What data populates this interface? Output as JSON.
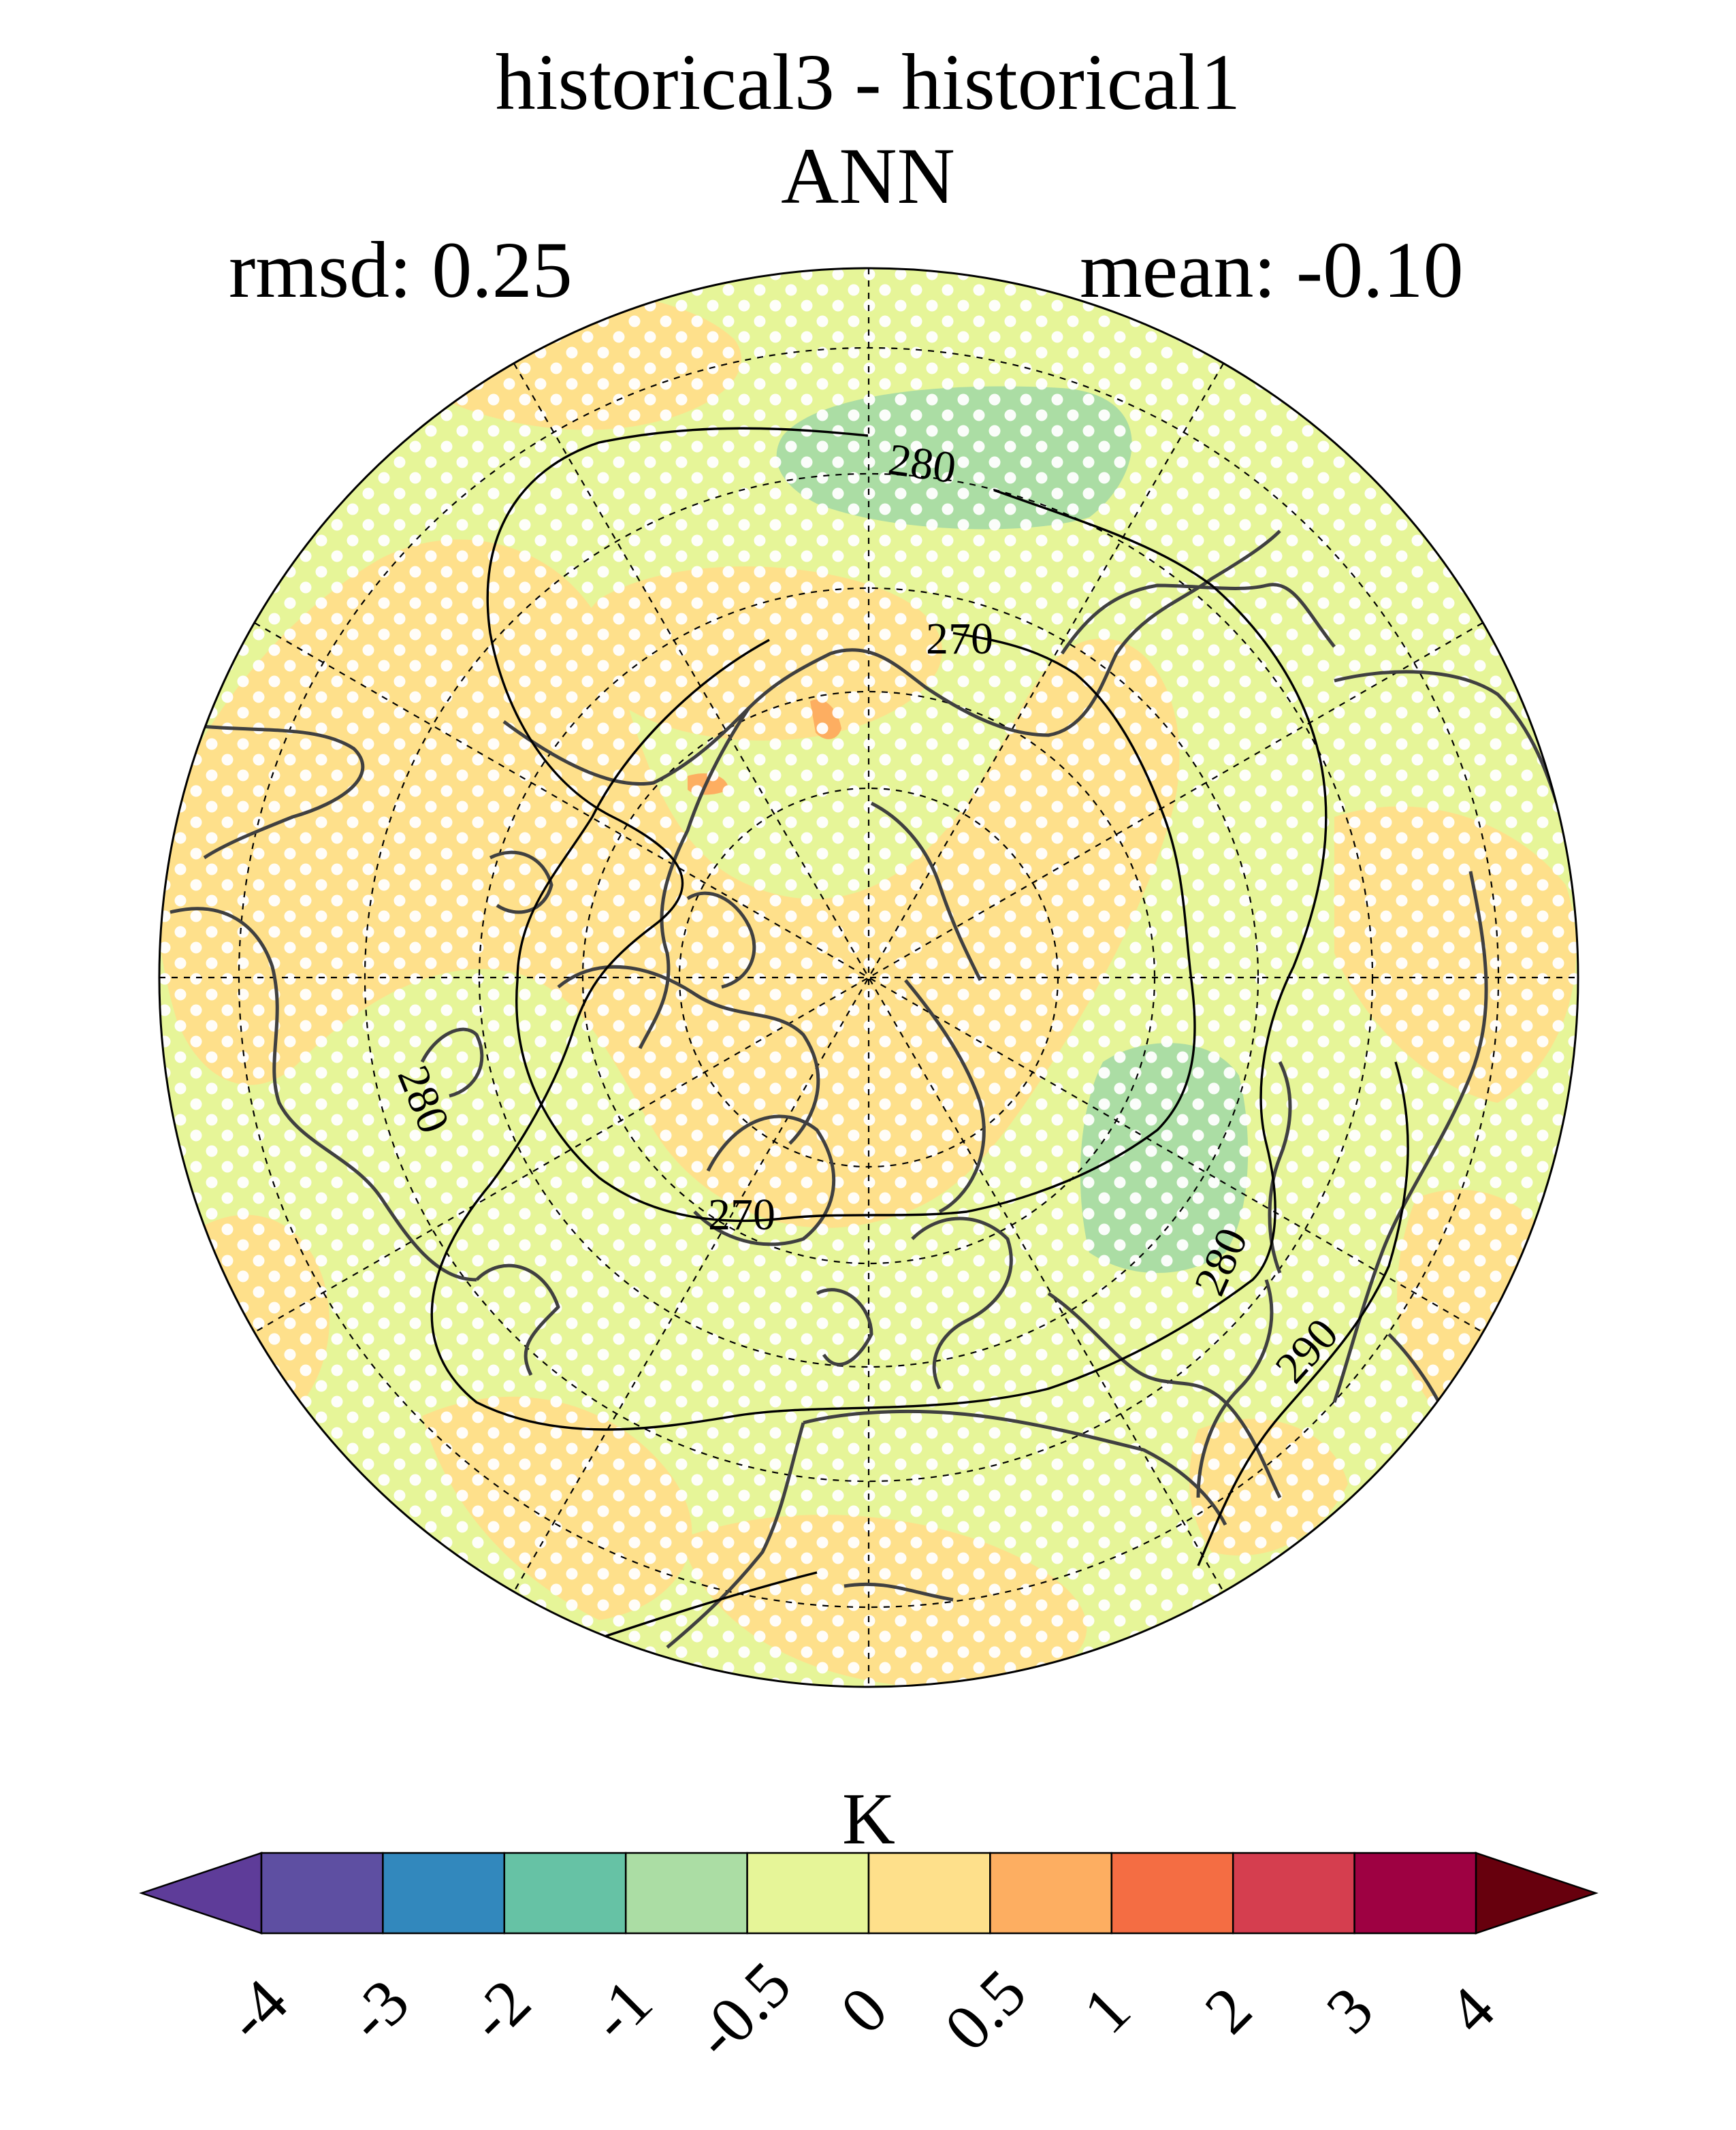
{
  "header": {
    "title": "historical3 - historical1",
    "season": "ANN",
    "rmsd": "rmsd: 0.25",
    "mean": "mean: -0.10"
  },
  "map": {
    "projection": "north-polar-stereographic",
    "contour_labels": [
      "280",
      "270",
      "280",
      "270",
      "280",
      "290"
    ],
    "fill_colors": {
      "neg_0_5_to_0": "#e6f598",
      "pos_0_to_0_5": "#fee08b",
      "neg_1_to_neg_0_5": "#abdda4",
      "pos_0_5_to_1": "#fdae61"
    },
    "stipple_color": "#ffffff",
    "coastline_color": "#404040"
  },
  "colorbar": {
    "unit": "K",
    "ticks": [
      "-4",
      "-3",
      "-2",
      "-1",
      "-0.5",
      "0",
      "0.5",
      "1",
      "2",
      "3",
      "4"
    ],
    "under_color": "#5e3c99",
    "colors": [
      "#5e4fa2",
      "#3288bd",
      "#66c2a5",
      "#abdda4",
      "#e6f598",
      "#fee08b",
      "#fdae61",
      "#f46d43",
      "#d53e4f",
      "#9e0142"
    ],
    "over_color": "#67000d"
  }
}
